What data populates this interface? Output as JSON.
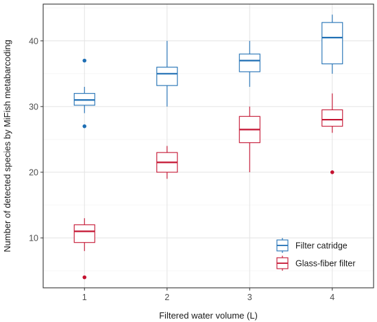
{
  "chart_data": {
    "type": "box",
    "xlabel": "Filtered water volume (L)",
    "ylabel": "Number of detected species by MiFish metabarcoding",
    "categories": [
      "1",
      "2",
      "3",
      "4"
    ],
    "ylim": [
      2.4,
      45.6
    ],
    "yticks": [
      10,
      20,
      30,
      40
    ],
    "grid": true,
    "legend_position": "bottom-right",
    "series": [
      {
        "name": "Filter catridge",
        "color": "#1f6fb4",
        "boxes": [
          {
            "category": "1",
            "whisker_low": 29,
            "q1": 30.2,
            "median": 31,
            "q3": 32,
            "whisker_high": 33,
            "outliers": [
              37,
              27
            ]
          },
          {
            "category": "2",
            "whisker_low": 30,
            "q1": 33.2,
            "median": 35,
            "q3": 36,
            "whisker_high": 40,
            "outliers": []
          },
          {
            "category": "3",
            "whisker_low": 33,
            "q1": 35.3,
            "median": 37,
            "q3": 38,
            "whisker_high": 40,
            "outliers": []
          },
          {
            "category": "4",
            "whisker_low": 35,
            "q1": 36.5,
            "median": 40.5,
            "q3": 42.8,
            "whisker_high": 44,
            "outliers": []
          }
        ]
      },
      {
        "name": "Glass-fiber filter",
        "color": "#c41230",
        "boxes": [
          {
            "category": "1",
            "whisker_low": 8,
            "q1": 9.3,
            "median": 11,
            "q3": 12,
            "whisker_high": 13,
            "outliers": [
              4
            ]
          },
          {
            "category": "2",
            "whisker_low": 19,
            "q1": 20,
            "median": 21.5,
            "q3": 23,
            "whisker_high": 24,
            "outliers": []
          },
          {
            "category": "3",
            "whisker_low": 20,
            "q1": 24.5,
            "median": 26.5,
            "q3": 28.5,
            "whisker_high": 30,
            "outliers": []
          },
          {
            "category": "4",
            "whisker_low": 26,
            "q1": 27,
            "median": 28,
            "q3": 29.5,
            "whisker_high": 32,
            "outliers": [
              20
            ]
          }
        ]
      }
    ]
  }
}
